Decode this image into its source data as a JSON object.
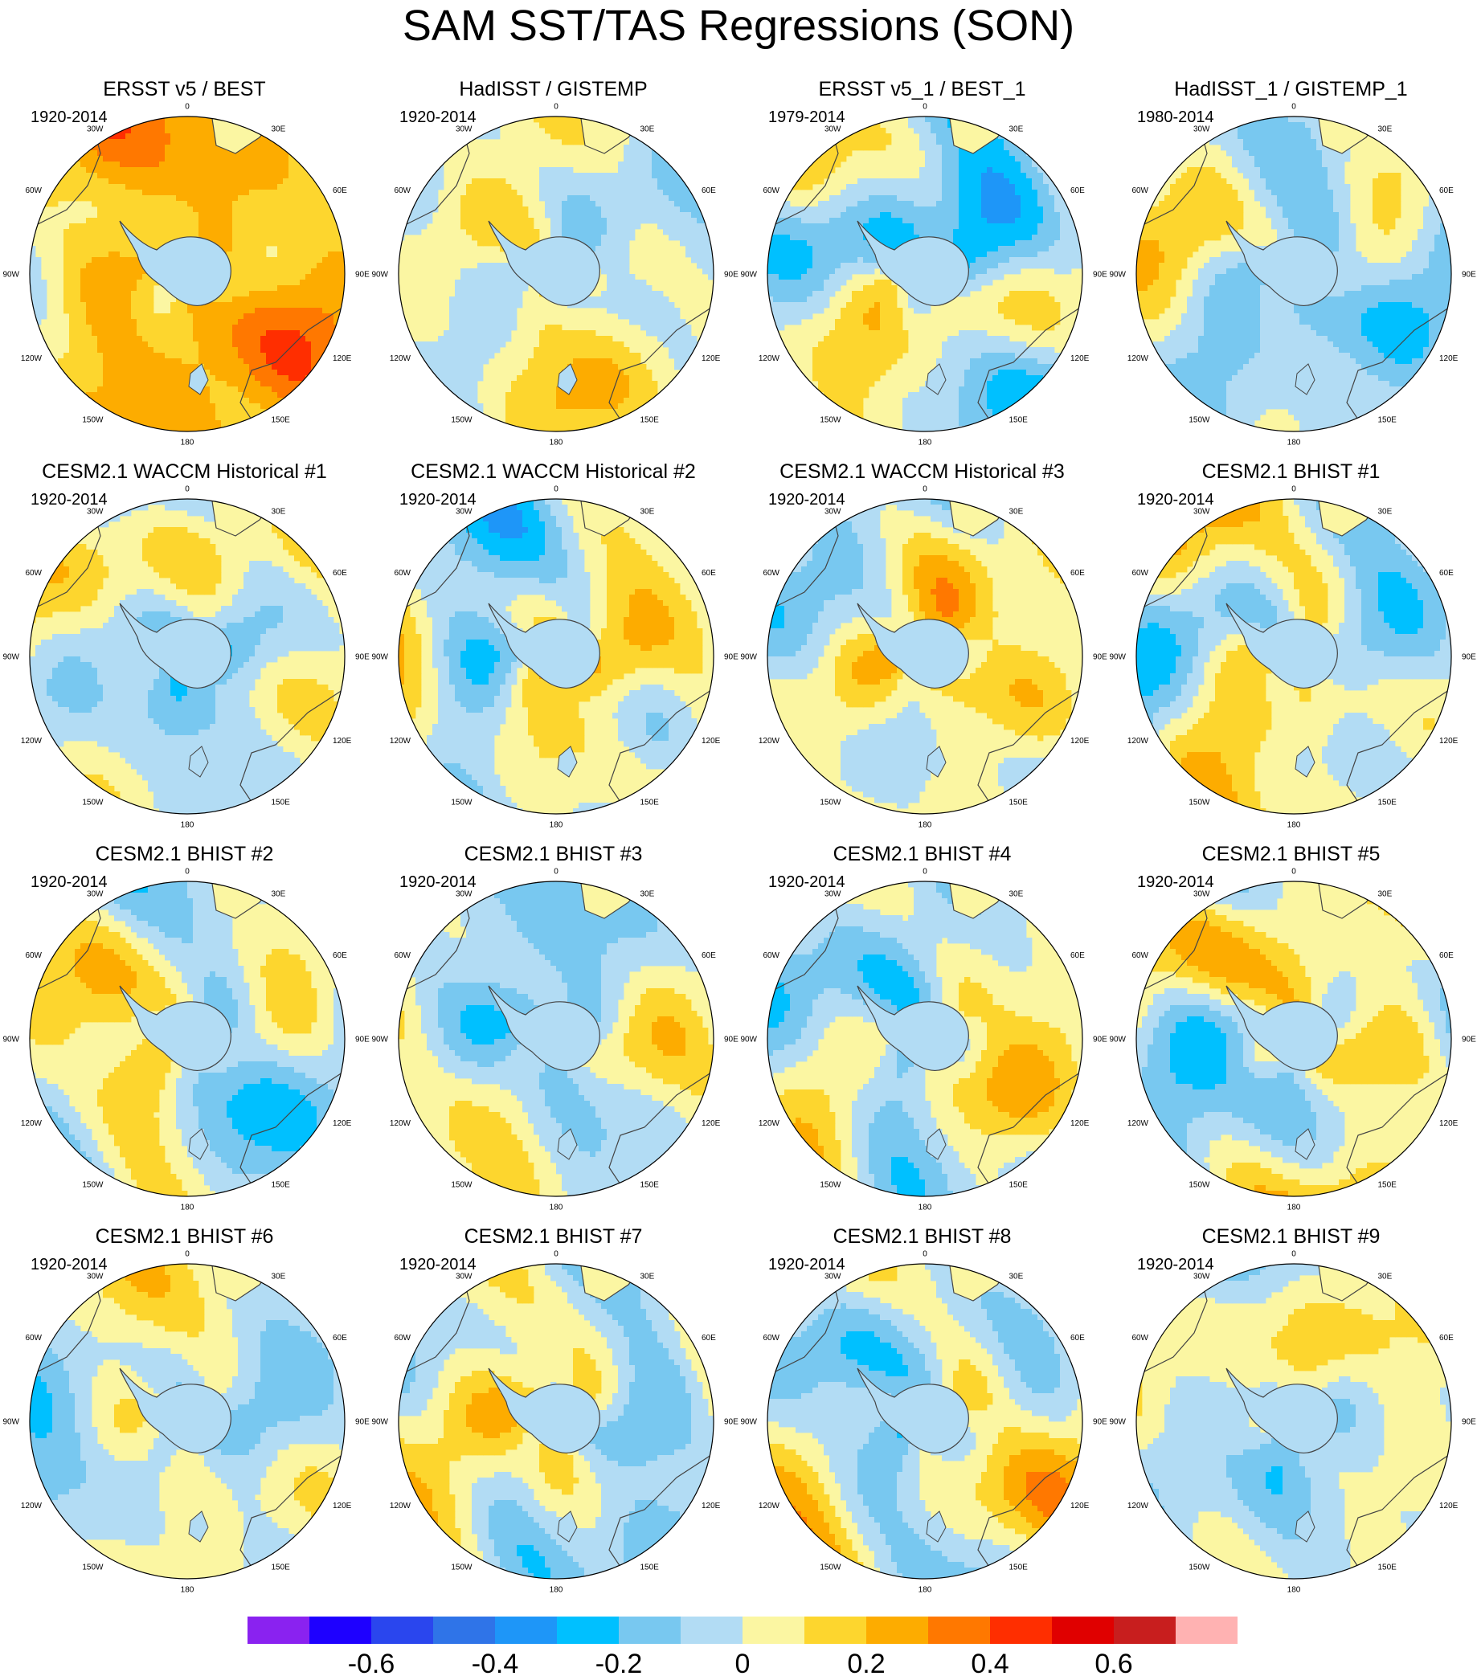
{
  "title": "SAM SST/TAS Regressions (SON)",
  "map_labels": {
    "lon": [
      "0",
      "30E",
      "60E",
      "90E",
      "120E",
      "150E",
      "180",
      "150W",
      "120W",
      "90W",
      "60W",
      "30W"
    ]
  },
  "panels": [
    {
      "title": "ERSST v5 / BEST",
      "period": "1920-2014",
      "base": 0.2,
      "amp": 0.13,
      "seed": 3
    },
    {
      "title": "HadISST / GISTEMP",
      "period": "1920-2014",
      "base": 0.02,
      "amp": 0.12,
      "seed": 7
    },
    {
      "title": "ERSST v5_1 / BEST_1",
      "period": "1979-2014",
      "base": -0.05,
      "amp": 0.15,
      "seed": 11
    },
    {
      "title": "HadISST_1 / GISTEMP_1",
      "period": "1980-2014",
      "base": -0.04,
      "amp": 0.12,
      "seed": 13
    },
    {
      "title": "CESM2.1 WACCM Historical #1",
      "period": "1920-2014",
      "base": 0.0,
      "amp": 0.13,
      "seed": 17
    },
    {
      "title": "CESM2.1 WACCM Historical #2",
      "period": "1920-2014",
      "base": 0.02,
      "amp": 0.16,
      "seed": 19
    },
    {
      "title": "CESM2.1 WACCM Historical #3",
      "period": "1920-2014",
      "base": 0.03,
      "amp": 0.15,
      "seed": 23
    },
    {
      "title": "CESM2.1 BHIST #1",
      "period": "1920-2014",
      "base": 0.01,
      "amp": 0.15,
      "seed": 29
    },
    {
      "title": "CESM2.1 BHIST #2",
      "period": "1920-2014",
      "base": -0.01,
      "amp": 0.14,
      "seed": 31
    },
    {
      "title": "CESM2.1 BHIST #3",
      "period": "1920-2014",
      "base": -0.02,
      "amp": 0.13,
      "seed": 37
    },
    {
      "title": "CESM2.1 BHIST #4",
      "period": "1920-2014",
      "base": -0.01,
      "amp": 0.14,
      "seed": 41
    },
    {
      "title": "CESM2.1 BHIST #5",
      "period": "1920-2014",
      "base": 0.03,
      "amp": 0.17,
      "seed": 43
    },
    {
      "title": "CESM2.1 BHIST #6",
      "period": "1920-2014",
      "base": -0.02,
      "amp": 0.12,
      "seed": 47
    },
    {
      "title": "CESM2.1 BHIST #7",
      "period": "1920-2014",
      "base": 0.0,
      "amp": 0.15,
      "seed": 53
    },
    {
      "title": "CESM2.1 BHIST #8",
      "period": "1920-2014",
      "base": 0.01,
      "amp": 0.15,
      "seed": 59
    },
    {
      "title": "CESM2.1 BHIST #9",
      "period": "1920-2014",
      "base": 0.0,
      "amp": 0.12,
      "seed": 61
    }
  ],
  "chart_data": {
    "type": "heatmap",
    "projection": "south polar stereographic",
    "title": "SAM SST/TAS Regressions (SON)",
    "colorbar": {
      "levels": [
        -0.7,
        -0.6,
        -0.5,
        -0.4,
        -0.3,
        -0.2,
        -0.1,
        0,
        0.1,
        0.2,
        0.3,
        0.4,
        0.5,
        0.6,
        0.7
      ],
      "colors": [
        "#8a22f0",
        "#1e00ff",
        "#2a46ee",
        "#2f74e8",
        "#1e96f8",
        "#00c0ff",
        "#78c8f0",
        "#b2dcf4",
        "#fbf6a2",
        "#fdd62e",
        "#fdac00",
        "#ff7800",
        "#ff2e00",
        "#e00000",
        "#c81e1e",
        "#ffb2b2"
      ],
      "tick_values": [
        -0.6,
        -0.4,
        -0.2,
        0,
        0.2,
        0.4,
        0.6
      ],
      "tick_labels": [
        "-0.6",
        "-0.4",
        "-0.2",
        "0",
        "0.2",
        "0.4",
        "0.6"
      ]
    }
  }
}
